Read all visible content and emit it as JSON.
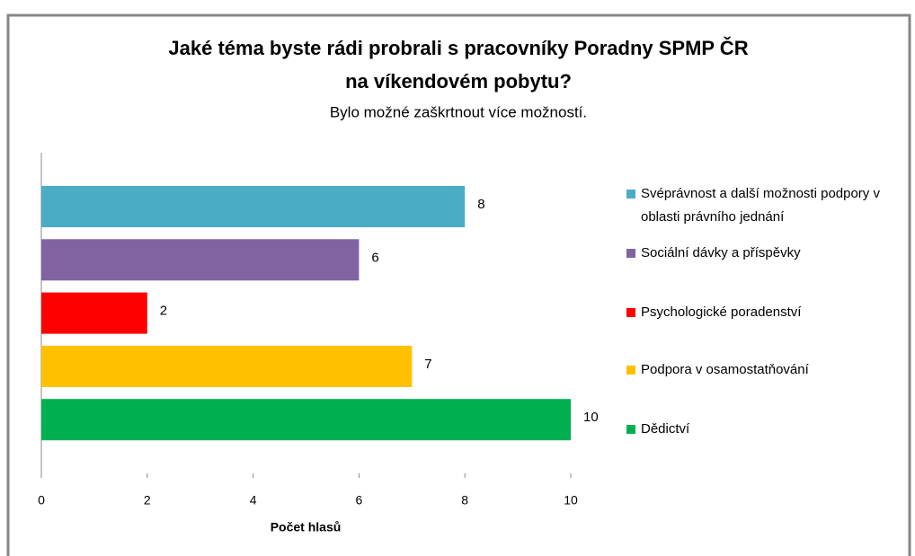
{
  "chart_data": {
    "type": "bar",
    "orientation": "horizontal",
    "title": [
      "Jaké téma byste rádi probrali s pracovníky Poradny SPMP ČR",
      "na víkendovém pobytu?"
    ],
    "subtitle": "Bylo možné zaškrtnout více možností.",
    "x_label": "Počet hlasů",
    "categories": [
      "Svéprávnost a další možnosti podpory v oblasti právního jednání",
      "Sociální dávky a příspěvky",
      "Psychologické poradenství",
      "Podpora v osamostatňování",
      "Dědictví"
    ],
    "values": [
      8,
      6,
      2,
      7,
      10
    ],
    "colors": [
      "#4bacc6",
      "#8064a2",
      "#ff0000",
      "#ffc000",
      "#00b050"
    ],
    "xlim": [
      0,
      10
    ],
    "xticks": [
      0,
      2,
      4,
      6,
      8,
      10
    ],
    "legend": "right"
  }
}
